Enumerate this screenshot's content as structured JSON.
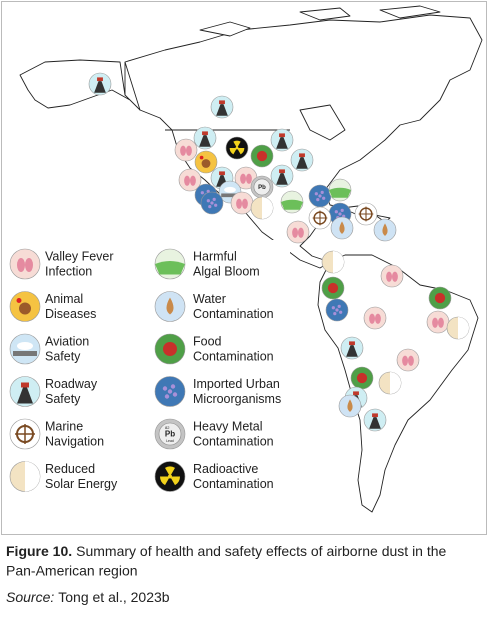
{
  "legend": [
    {
      "lines": [
        "Valley Fever",
        "Infection"
      ]
    },
    {
      "lines": [
        "Harmful",
        "Algal Bloom"
      ]
    },
    {
      "lines": [
        "Animal",
        "Diseases"
      ]
    },
    {
      "lines": [
        "Water",
        "Contamination"
      ]
    },
    {
      "lines": [
        "Aviation",
        "Safety"
      ]
    },
    {
      "lines": [
        "Food",
        "Contamination"
      ]
    },
    {
      "lines": [
        "Roadway",
        "Safety"
      ]
    },
    {
      "lines": [
        "Imported Urban",
        "Microorganisms"
      ]
    },
    {
      "lines": [
        "Marine",
        "Navigation"
      ]
    },
    {
      "lines": [
        "Heavy Metal",
        "Contamination"
      ]
    },
    {
      "lines": [
        "Reduced",
        "Solar Energy"
      ]
    },
    {
      "lines": [
        "Radioactive",
        "Contamination"
      ]
    }
  ],
  "pb_icon": {
    "number": "82",
    "symbol": "Pb",
    "name": "Lead"
  },
  "caption": {
    "label": "Figure 10.",
    "text_line1": "Summary of health and safety effects of airborne dust in the",
    "text_line2": "Pan-American region"
  },
  "source": {
    "label": "Source:",
    "text": "Tong et al., 2023b"
  }
}
